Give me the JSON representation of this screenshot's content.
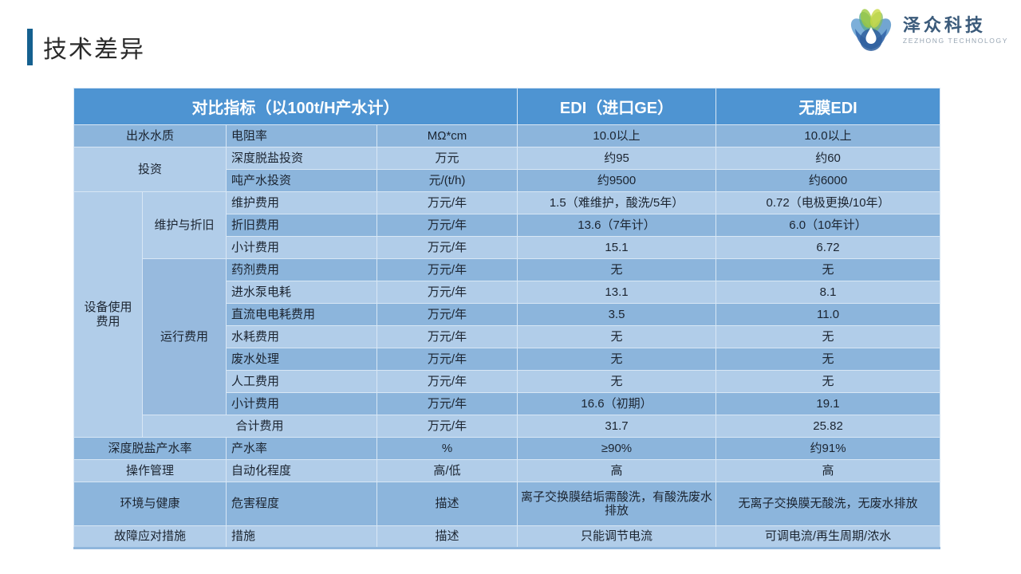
{
  "slide": {
    "title": "技术差异"
  },
  "logo": {
    "name": "泽众科技",
    "subtitle": "ZEZHONG TECHNOLOGY",
    "icon": "lotus-waterdrop-icon"
  },
  "colors": {
    "header_bg": "#4e94d2",
    "row_dark": "#8cb5dc",
    "row_light": "#b1cde9",
    "row_mid": "#97bade",
    "cell_border": "#d8e7f5",
    "table_bottom": "#8fb6dc",
    "body_text": "#1b2430",
    "title_bar": "#15608f",
    "title_text": "#2b2b2b",
    "logo_name": "#3a5a7a",
    "logo_sub": "#97a5b3"
  },
  "table": {
    "columns": [
      86,
      105,
      189,
      176,
      249,
      281
    ],
    "default_row_height": 28,
    "header": {
      "height": 46,
      "cells": [
        {
          "t": "对比指标（以100t/H产水计）",
          "cs": 4
        },
        {
          "t": "EDI（进口GE）"
        },
        {
          "t": "无膜EDI"
        }
      ]
    },
    "rows": [
      {
        "shade": "dark",
        "cells": [
          {
            "t": "出水水质",
            "cs": 2
          },
          {
            "t": "电阻率",
            "al": "l"
          },
          {
            "t": "MΩ*cm"
          },
          {
            "t": "10.0以上"
          },
          {
            "t": "10.0以上"
          }
        ]
      },
      {
        "shade": "light",
        "cells": [
          {
            "t": "投资",
            "cs": 2,
            "rs": 2,
            "shade": "light"
          },
          {
            "t": "深度脱盐投资",
            "al": "l"
          },
          {
            "t": "万元"
          },
          {
            "t": "约95"
          },
          {
            "t": "约60"
          }
        ]
      },
      {
        "shade": "dark",
        "cells": [
          {
            "t": "吨产水投资",
            "al": "l"
          },
          {
            "t": "元/(t/h)"
          },
          {
            "t": "约9500"
          },
          {
            "t": "约6000"
          }
        ]
      },
      {
        "shade": "light",
        "cells": [
          {
            "t": "设备使用\n费用",
            "rs": 11,
            "shade": "light"
          },
          {
            "t": "维护与折旧",
            "rs": 3,
            "shade": "light"
          },
          {
            "t": "维护费用",
            "al": "l"
          },
          {
            "t": "万元/年"
          },
          {
            "t": "1.5（难维护，酸洗/5年）"
          },
          {
            "t": "0.72（电极更换/10年）"
          }
        ]
      },
      {
        "shade": "dark",
        "cells": [
          {
            "t": "折旧费用",
            "al": "l"
          },
          {
            "t": "万元/年"
          },
          {
            "t": "13.6（7年计）"
          },
          {
            "t": "6.0（10年计）"
          }
        ]
      },
      {
        "shade": "light",
        "cells": [
          {
            "t": "小计费用",
            "al": "l"
          },
          {
            "t": "万元/年"
          },
          {
            "t": "15.1"
          },
          {
            "t": "6.72"
          }
        ]
      },
      {
        "shade": "dark",
        "cells": [
          {
            "t": "运行费用",
            "rs": 7,
            "shade": "mid"
          },
          {
            "t": "药剂费用",
            "al": "l"
          },
          {
            "t": "万元/年"
          },
          {
            "t": "无"
          },
          {
            "t": "无"
          }
        ]
      },
      {
        "shade": "light",
        "cells": [
          {
            "t": "进水泵电耗",
            "al": "l"
          },
          {
            "t": "万元/年"
          },
          {
            "t": "13.1"
          },
          {
            "t": "8.1"
          }
        ]
      },
      {
        "shade": "dark",
        "cells": [
          {
            "t": "直流电电耗费用",
            "al": "l"
          },
          {
            "t": "万元/年"
          },
          {
            "t": "3.5"
          },
          {
            "t": "11.0"
          }
        ]
      },
      {
        "shade": "light",
        "cells": [
          {
            "t": "水耗费用",
            "al": "l"
          },
          {
            "t": "万元/年"
          },
          {
            "t": "无"
          },
          {
            "t": "无"
          }
        ]
      },
      {
        "shade": "dark",
        "cells": [
          {
            "t": "废水处理",
            "al": "l"
          },
          {
            "t": "万元/年"
          },
          {
            "t": "无"
          },
          {
            "t": "无"
          }
        ]
      },
      {
        "shade": "light",
        "cells": [
          {
            "t": "人工费用",
            "al": "l"
          },
          {
            "t": "万元/年"
          },
          {
            "t": "无"
          },
          {
            "t": "无"
          }
        ]
      },
      {
        "shade": "dark",
        "cells": [
          {
            "t": "小计费用",
            "al": "l"
          },
          {
            "t": "万元/年"
          },
          {
            "t": "16.6（初期）"
          },
          {
            "t": "19.1"
          }
        ]
      },
      {
        "shade": "light",
        "cells": [
          {
            "t": "合计费用",
            "cs": 2
          },
          {
            "t": "万元/年"
          },
          {
            "t": "31.7"
          },
          {
            "t": "25.82"
          }
        ]
      },
      {
        "shade": "dark",
        "cells": [
          {
            "t": "深度脱盐产水率",
            "cs": 2
          },
          {
            "t": "产水率",
            "al": "l"
          },
          {
            "t": "%"
          },
          {
            "t": "≥90%"
          },
          {
            "t": "约91%"
          }
        ]
      },
      {
        "shade": "light",
        "cells": [
          {
            "t": "操作管理",
            "cs": 2
          },
          {
            "t": "自动化程度",
            "al": "l"
          },
          {
            "t": "高/低"
          },
          {
            "t": "高"
          },
          {
            "t": "高"
          }
        ]
      },
      {
        "shade": "dark",
        "h": 55,
        "cells": [
          {
            "t": "环境与健康",
            "cs": 2
          },
          {
            "t": "危害程度",
            "al": "l"
          },
          {
            "t": "描述"
          },
          {
            "t": "离子交换膜结垢需酸洗，有酸洗废水排放"
          },
          {
            "t": "无离子交换膜无酸洗，无废水排放"
          }
        ]
      },
      {
        "shade": "light",
        "cells": [
          {
            "t": "故障应对措施",
            "cs": 2
          },
          {
            "t": "措施",
            "al": "l"
          },
          {
            "t": "描述"
          },
          {
            "t": "只能调节电流"
          },
          {
            "t": "可调电流/再生周期/浓水"
          }
        ]
      }
    ]
  }
}
